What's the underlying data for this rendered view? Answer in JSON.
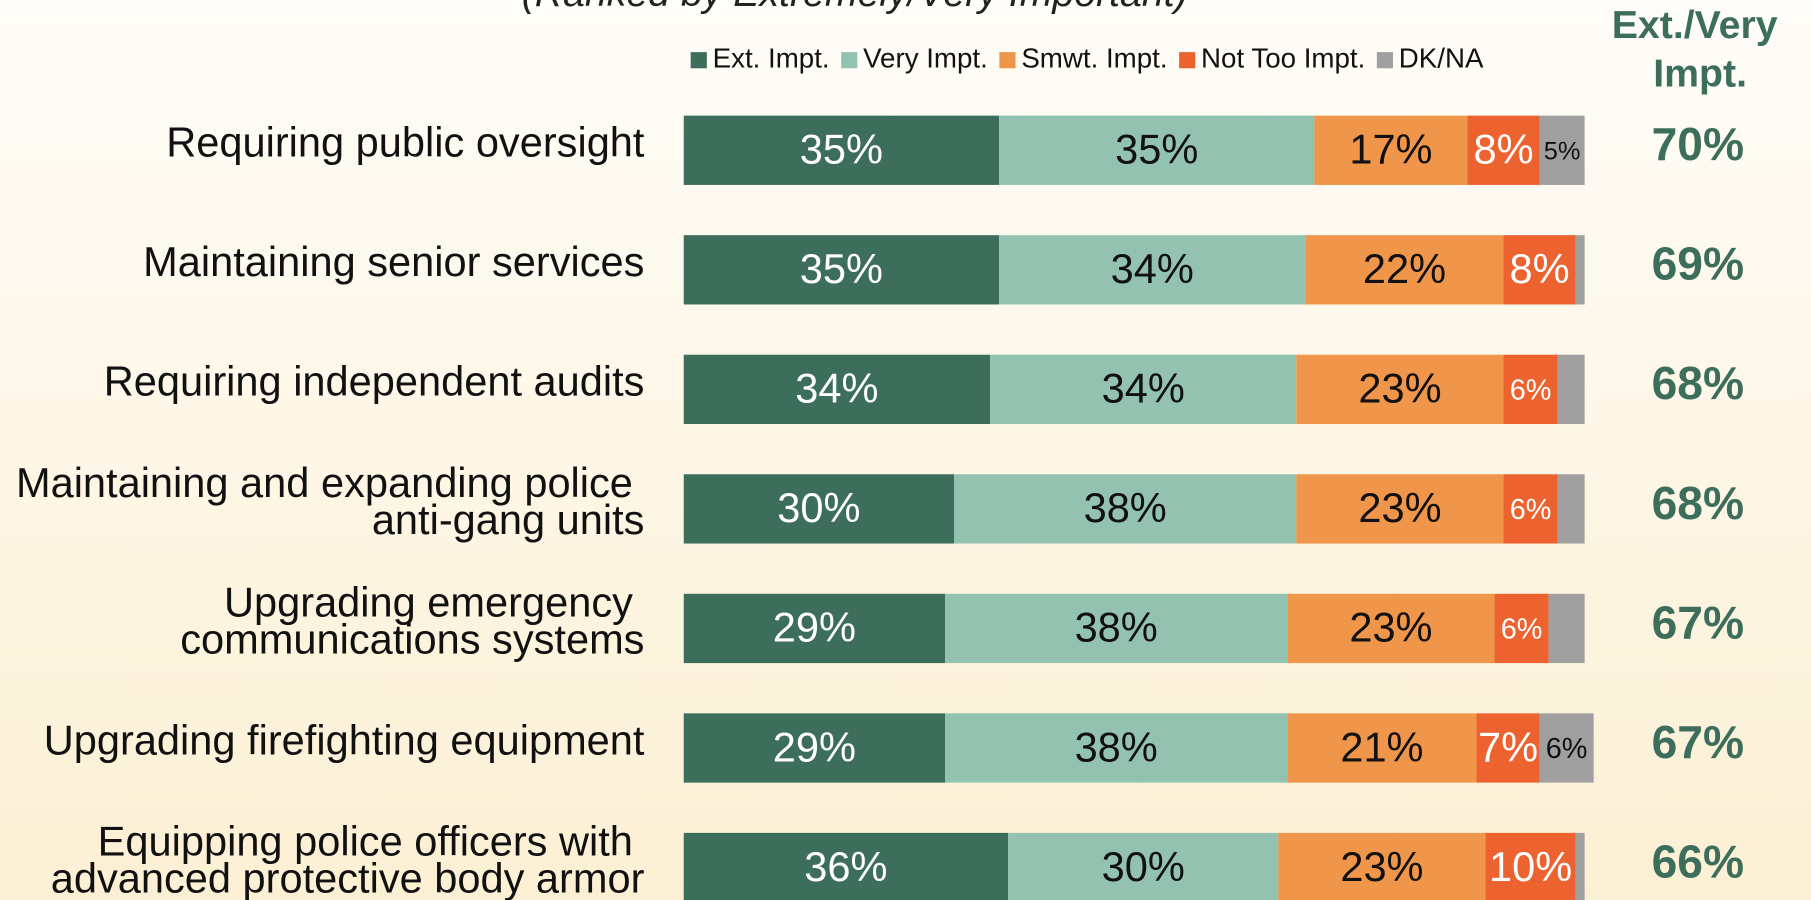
{
  "chart_data": {
    "type": "stacked-bar-horizontal",
    "subtitle": "(Ranked by Extremely/Very Important)",
    "categories": [
      "Requiring public oversight",
      "Maintaining senior services",
      "Requiring independent audits",
      "Maintaining and expanding police anti-gang units",
      "Upgrading emergency communications systems",
      "Upgrading firefighting equipment",
      "Equipping police officers with advanced protective body armor"
    ],
    "xlim": [
      0,
      100
    ],
    "legend": "top",
    "series": [
      {
        "name": "Ext. Impt.",
        "color": "#3d6e5c",
        "values": [
          35,
          35,
          34,
          30,
          29,
          29,
          36
        ],
        "value_labels": [
          "35%",
          "35%",
          "34%",
          "30%",
          "29%",
          "29%",
          "36%"
        ]
      },
      {
        "name": "Very Impt.",
        "color": "#93c2b1",
        "values": [
          35,
          34,
          34,
          38,
          38,
          38,
          30
        ],
        "value_labels": [
          "35%",
          "34%",
          "34%",
          "38%",
          "38%",
          "38%",
          "30%"
        ]
      },
      {
        "name": "Smwt. Impt.",
        "color": "#f0964a",
        "values": [
          17,
          22,
          23,
          23,
          23,
          21,
          23
        ],
        "value_labels": [
          "17%",
          "22%",
          "23%",
          "23%",
          "23%",
          "21%",
          "23%"
        ]
      },
      {
        "name": "Not Too Impt.",
        "color": "#ec6330",
        "values": [
          8,
          8,
          6,
          6,
          6,
          7,
          10
        ],
        "value_labels": [
          "8%",
          "8%",
          "6%",
          "6%",
          "6%",
          "7%",
          "10%"
        ]
      },
      {
        "name": "DK/NA",
        "color": "#a0a0a0",
        "values": [
          5,
          1,
          3,
          3,
          4,
          6,
          1
        ],
        "value_labels": [
          "5%",
          null,
          null,
          null,
          null,
          "6%",
          null
        ]
      }
    ],
    "totals": {
      "title": "Ext./Very Impt.",
      "color": "#3d6e5c",
      "values": [
        70,
        69,
        68,
        68,
        67,
        67,
        66
      ],
      "value_labels": [
        "70%",
        "69%",
        "68%",
        "68%",
        "67%",
        "67%",
        "66%"
      ]
    }
  }
}
